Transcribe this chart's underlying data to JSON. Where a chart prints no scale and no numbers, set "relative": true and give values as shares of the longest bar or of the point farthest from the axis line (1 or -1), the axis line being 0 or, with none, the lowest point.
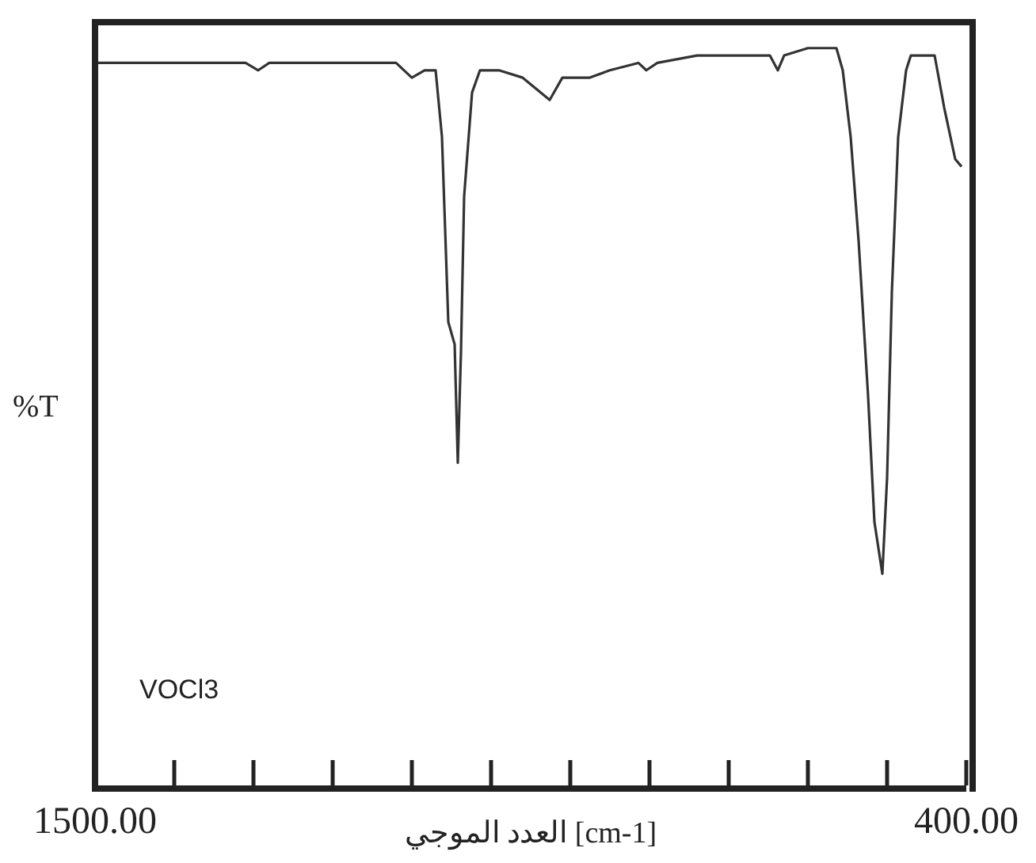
{
  "chart_data": {
    "type": "line",
    "relative": true,
    "xlabel": "العدد الموجي [cm-1]",
    "ylabel": "%T",
    "annotations": [
      "VOCl3"
    ],
    "xlim": [
      1500,
      400
    ],
    "xticks": [
      {
        "value": 1500,
        "label": "1500.00"
      },
      {
        "value": 1400,
        "label": null
      },
      {
        "value": 1300,
        "label": null
      },
      {
        "value": 1200,
        "label": null
      },
      {
        "value": 1100,
        "label": null
      },
      {
        "value": 1000,
        "label": null
      },
      {
        "value": 900,
        "label": null
      },
      {
        "value": 800,
        "label": null
      },
      {
        "value": 700,
        "label": null
      },
      {
        "value": 600,
        "label": null
      },
      {
        "value": 500,
        "label": null
      },
      {
        "value": 400,
        "label": "400.00"
      }
    ],
    "x": [
      1500,
      1420,
      1310,
      1294,
      1280,
      1120,
      1100,
      1084,
      1070,
      1062,
      1054,
      1046,
      1042,
      1038,
      1034,
      1024,
      1014,
      990,
      960,
      926,
      910,
      876,
      850,
      814,
      804,
      790,
      740,
      680,
      648,
      638,
      630,
      600,
      564,
      556,
      546,
      536,
      524,
      516,
      506,
      500,
      494,
      486,
      476,
      470,
      450,
      440,
      428,
      414,
      406
    ],
    "series": [
      {
        "color": "#333333",
        "values": [
          0.98,
          0.98,
          0.98,
          0.97,
          0.98,
          0.98,
          0.96,
          0.97,
          0.97,
          0.88,
          0.63,
          0.6,
          0.44,
          0.59,
          0.8,
          0.94,
          0.97,
          0.97,
          0.96,
          0.93,
          0.96,
          0.96,
          0.97,
          0.98,
          0.97,
          0.98,
          0.99,
          0.99,
          0.99,
          0.97,
          0.99,
          1,
          1,
          0.97,
          0.88,
          0.74,
          0.53,
          0.36,
          0.29,
          0.42,
          0.67,
          0.88,
          0.97,
          0.99,
          0.99,
          0.99,
          0.92,
          0.85,
          0.84
        ]
      }
    ]
  }
}
